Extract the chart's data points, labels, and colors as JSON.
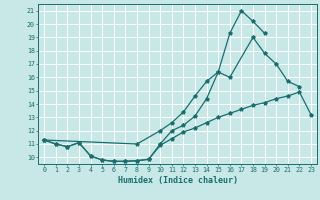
{
  "title": "",
  "xlabel": "Humidex (Indice chaleur)",
  "bg_color": "#c8e8e8",
  "grid_color": "#ffffff",
  "line_color": "#1a6e6e",
  "xlim": [
    -0.5,
    23.5
  ],
  "ylim": [
    9.5,
    21.5
  ],
  "yticks": [
    10,
    11,
    12,
    13,
    14,
    15,
    16,
    17,
    18,
    19,
    20,
    21
  ],
  "xticks": [
    0,
    1,
    2,
    3,
    4,
    5,
    6,
    7,
    8,
    9,
    10,
    11,
    12,
    13,
    14,
    15,
    16,
    17,
    18,
    19,
    20,
    21,
    22,
    23
  ],
  "curve1_x": [
    0,
    1,
    2,
    3,
    4,
    5,
    6,
    7,
    8,
    9,
    10,
    11,
    12,
    13,
    14,
    15,
    16,
    17,
    18,
    19
  ],
  "curve1_y": [
    11.3,
    11.0,
    10.8,
    11.1,
    10.1,
    9.8,
    9.7,
    9.7,
    9.75,
    9.85,
    11.0,
    12.0,
    12.4,
    13.1,
    14.4,
    16.4,
    19.3,
    21.0,
    20.2,
    19.3
  ],
  "curve2_x": [
    0,
    8,
    10,
    11,
    12,
    13,
    14,
    15,
    16,
    18,
    19,
    20,
    21,
    22
  ],
  "curve2_y": [
    11.3,
    11.0,
    12.0,
    12.6,
    13.4,
    14.6,
    15.7,
    16.4,
    16.0,
    19.0,
    17.8,
    17.0,
    15.7,
    15.3
  ],
  "curve3_x": [
    0,
    1,
    2,
    3,
    4,
    5,
    6,
    7,
    8,
    9,
    10,
    11,
    12,
    13,
    14,
    15,
    16,
    17,
    18,
    19,
    20,
    21,
    22,
    23
  ],
  "curve3_y": [
    11.3,
    11.0,
    10.8,
    11.1,
    10.1,
    9.8,
    9.7,
    9.7,
    9.75,
    9.85,
    10.9,
    11.4,
    11.9,
    12.2,
    12.6,
    13.0,
    13.3,
    13.6,
    13.9,
    14.1,
    14.4,
    14.6,
    14.9,
    13.2
  ]
}
